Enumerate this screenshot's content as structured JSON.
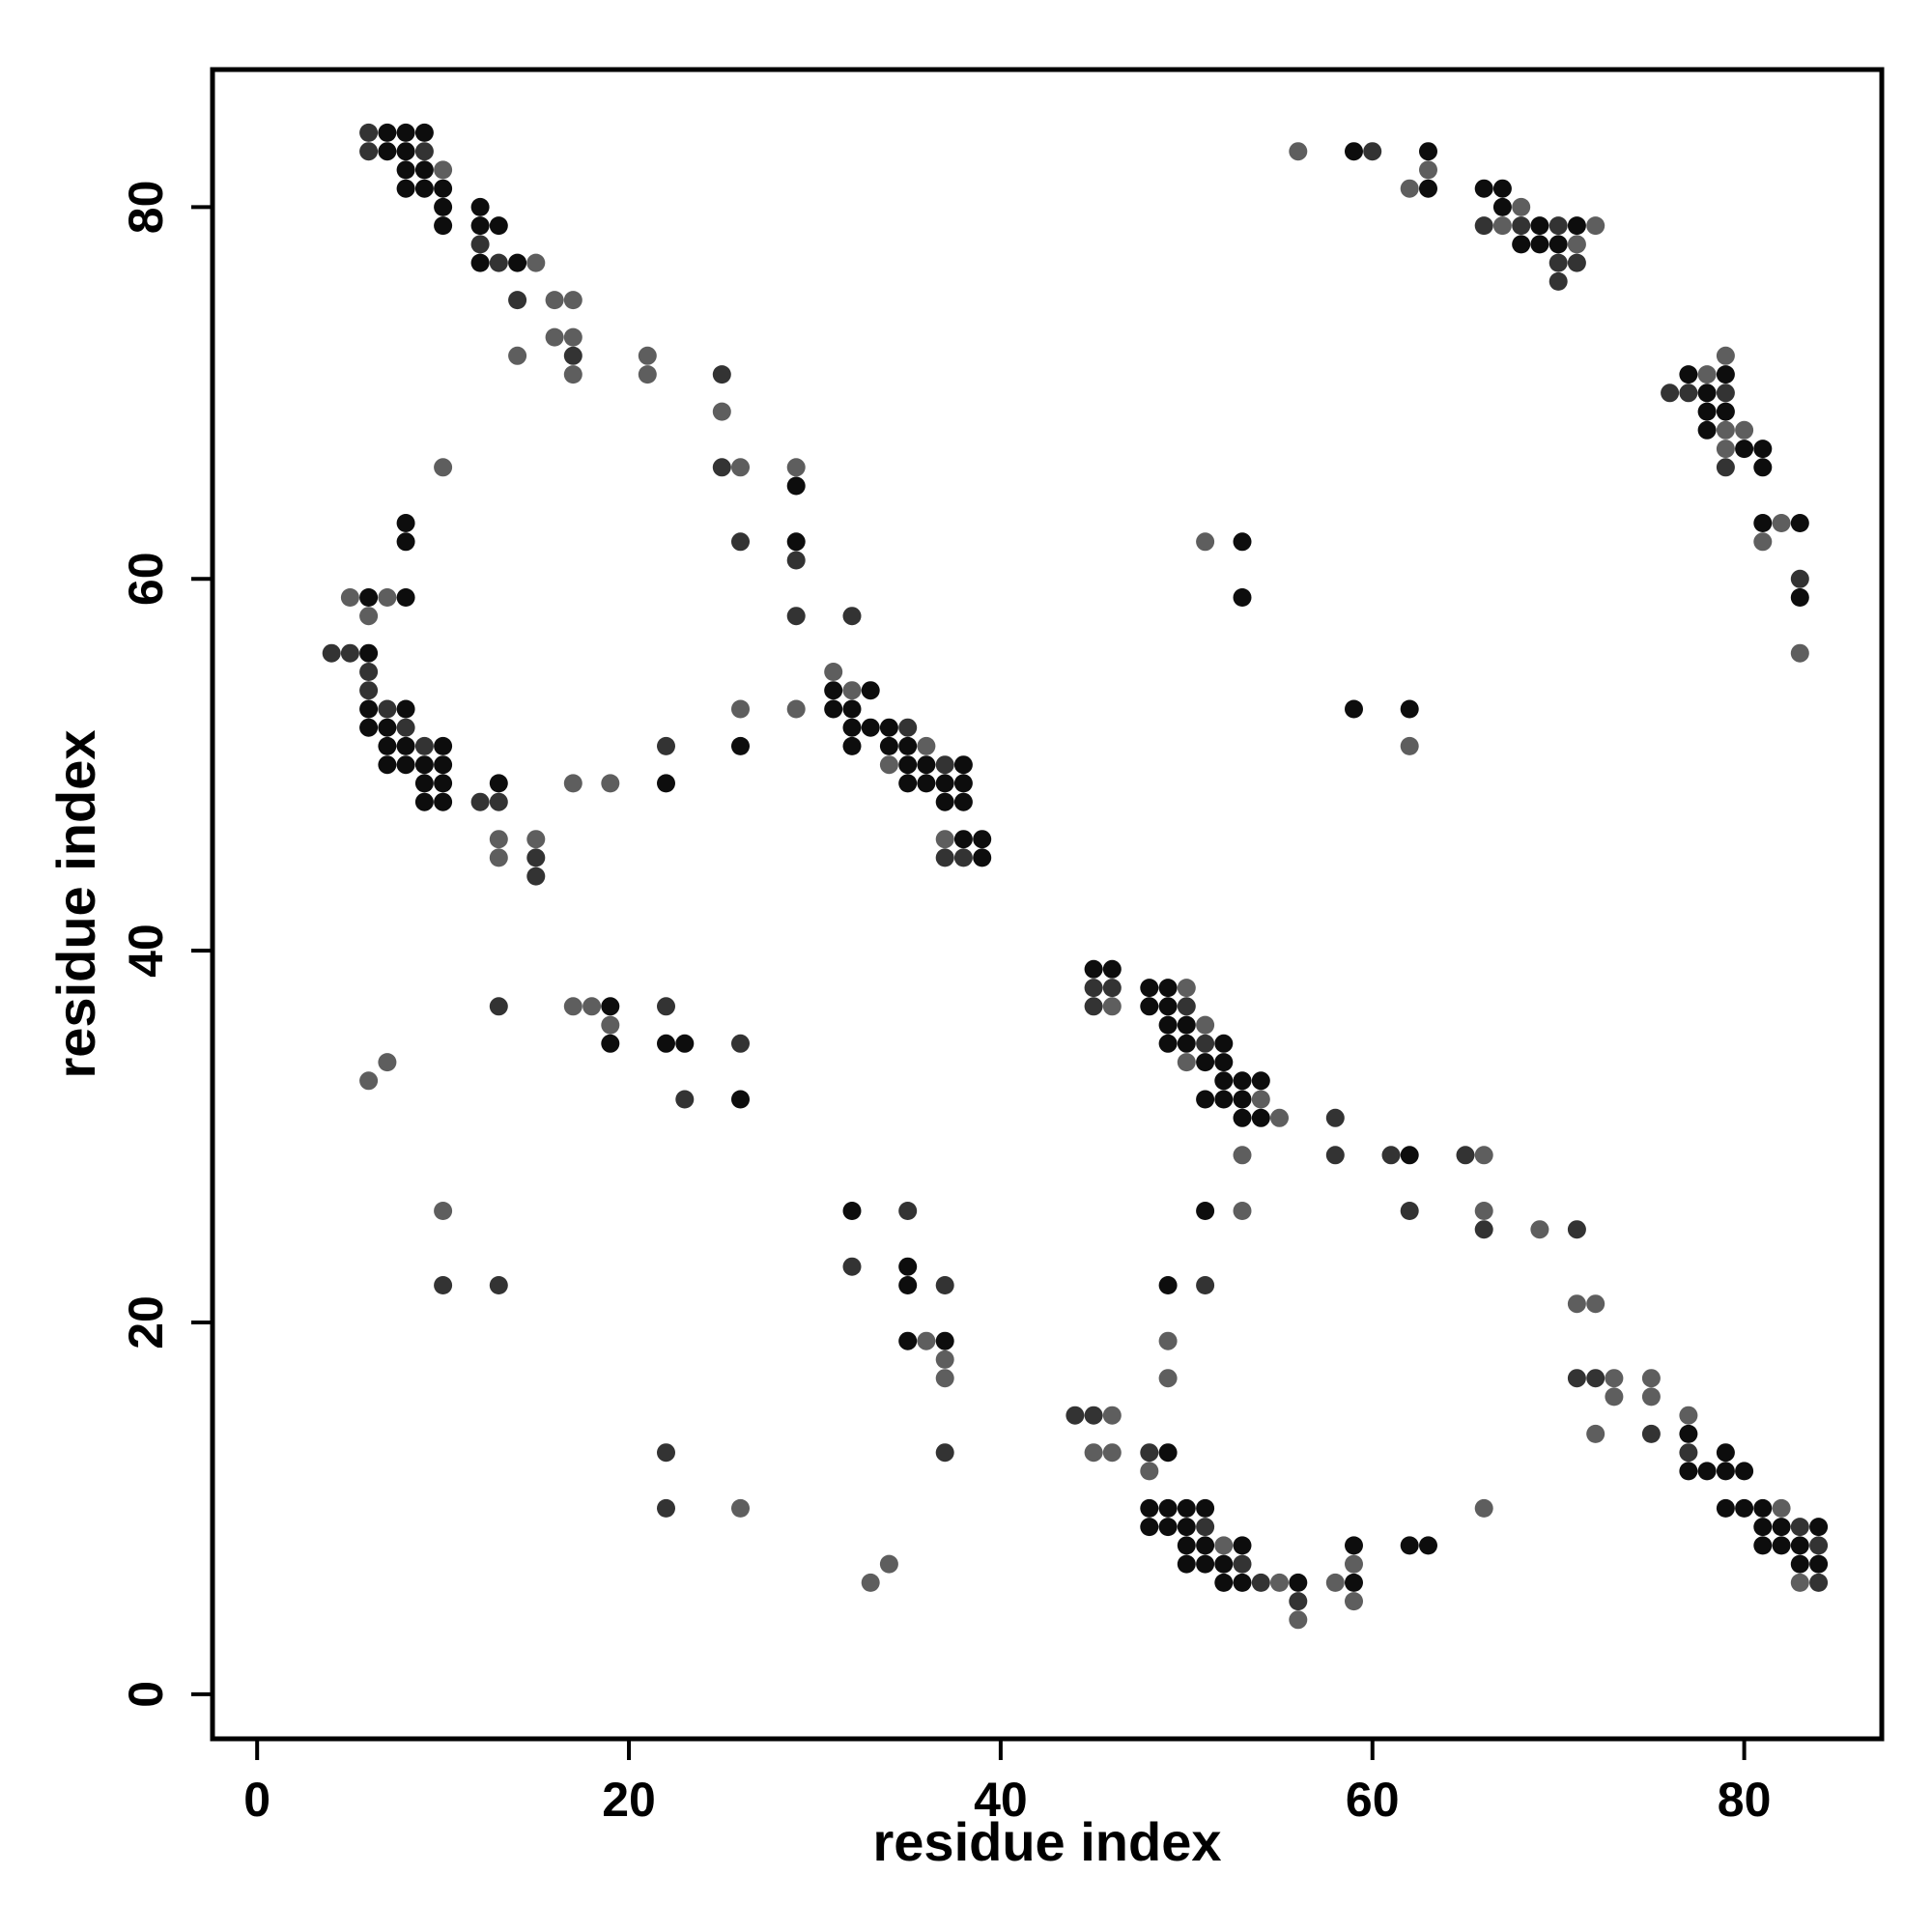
{
  "chart_data": {
    "type": "scatter",
    "title": "",
    "xlabel": "residue index",
    "ylabel": "residue index",
    "xlim": [
      -2.4,
      87.4
    ],
    "ylim": [
      -2.4,
      87.4
    ],
    "x_ticks": [
      0,
      20,
      40,
      60,
      80
    ],
    "y_ticks": [
      0,
      20,
      40,
      60,
      80
    ],
    "grid": false,
    "legend": "none",
    "colors": {
      "dark": "#0d0d0d",
      "mid": "#333333",
      "light": "#5e5e5e"
    },
    "points": [
      [
        6,
        84,
        "mid"
      ],
      [
        7,
        84,
        "dark"
      ],
      [
        8,
        84,
        "dark"
      ],
      [
        9,
        84,
        "dark"
      ],
      [
        6,
        83,
        "mid"
      ],
      [
        7,
        83,
        "dark"
      ],
      [
        8,
        83,
        "dark"
      ],
      [
        9,
        83,
        "mid"
      ],
      [
        8,
        82,
        "dark"
      ],
      [
        9,
        82,
        "dark"
      ],
      [
        10,
        82,
        "light"
      ],
      [
        8,
        81,
        "dark"
      ],
      [
        9,
        81,
        "dark"
      ],
      [
        10,
        81,
        "dark"
      ],
      [
        10,
        80,
        "dark"
      ],
      [
        12,
        80,
        "dark"
      ],
      [
        10,
        79,
        "dark"
      ],
      [
        12,
        79,
        "dark"
      ],
      [
        13,
        79,
        "dark"
      ],
      [
        12,
        78,
        "mid"
      ],
      [
        12,
        77,
        "dark"
      ],
      [
        13,
        77,
        "mid"
      ],
      [
        14,
        77,
        "dark"
      ],
      [
        15,
        77,
        "light"
      ],
      [
        14,
        75,
        "mid"
      ],
      [
        16,
        75,
        "light"
      ],
      [
        17,
        75,
        "light"
      ],
      [
        16,
        73,
        "light"
      ],
      [
        17,
        73,
        "light"
      ],
      [
        14,
        72,
        "light"
      ],
      [
        17,
        72,
        "mid"
      ],
      [
        21,
        72,
        "light"
      ],
      [
        17,
        71,
        "light"
      ],
      [
        21,
        71,
        "light"
      ],
      [
        25,
        71,
        "mid"
      ],
      [
        25,
        69,
        "light"
      ],
      [
        10,
        66,
        "light"
      ],
      [
        25,
        66,
        "mid"
      ],
      [
        26,
        66,
        "light"
      ],
      [
        29,
        66,
        "light"
      ],
      [
        29,
        65,
        "dark"
      ],
      [
        8,
        63,
        "dark"
      ],
      [
        8,
        62,
        "dark"
      ],
      [
        26,
        62,
        "mid"
      ],
      [
        29,
        62,
        "dark"
      ],
      [
        29,
        61,
        "mid"
      ],
      [
        5,
        59,
        "light"
      ],
      [
        6,
        59,
        "dark"
      ],
      [
        7,
        59,
        "light"
      ],
      [
        8,
        59,
        "dark"
      ],
      [
        6,
        58,
        "light"
      ],
      [
        29,
        58,
        "mid"
      ],
      [
        32,
        58,
        "mid"
      ],
      [
        4,
        56,
        "mid"
      ],
      [
        5,
        56,
        "mid"
      ],
      [
        6,
        56,
        "dark"
      ],
      [
        6,
        55,
        "mid"
      ],
      [
        31,
        55,
        "light"
      ],
      [
        6,
        54,
        "mid"
      ],
      [
        31,
        54,
        "dark"
      ],
      [
        32,
        54,
        "light"
      ],
      [
        33,
        54,
        "dark"
      ],
      [
        6,
        53,
        "dark"
      ],
      [
        7,
        53,
        "mid"
      ],
      [
        8,
        53,
        "dark"
      ],
      [
        26,
        53,
        "light"
      ],
      [
        29,
        53,
        "light"
      ],
      [
        31,
        53,
        "dark"
      ],
      [
        32,
        53,
        "dark"
      ],
      [
        6,
        52,
        "dark"
      ],
      [
        7,
        52,
        "dark"
      ],
      [
        8,
        52,
        "mid"
      ],
      [
        32,
        52,
        "dark"
      ],
      [
        33,
        52,
        "dark"
      ],
      [
        34,
        52,
        "dark"
      ],
      [
        35,
        52,
        "mid"
      ],
      [
        7,
        51,
        "dark"
      ],
      [
        8,
        51,
        "dark"
      ],
      [
        9,
        51,
        "mid"
      ],
      [
        10,
        51,
        "dark"
      ],
      [
        22,
        51,
        "mid"
      ],
      [
        26,
        51,
        "dark"
      ],
      [
        32,
        51,
        "dark"
      ],
      [
        34,
        51,
        "dark"
      ],
      [
        35,
        51,
        "dark"
      ],
      [
        36,
        51,
        "light"
      ],
      [
        7,
        50,
        "dark"
      ],
      [
        8,
        50,
        "dark"
      ],
      [
        9,
        50,
        "dark"
      ],
      [
        10,
        50,
        "dark"
      ],
      [
        34,
        50,
        "light"
      ],
      [
        35,
        50,
        "dark"
      ],
      [
        36,
        50,
        "dark"
      ],
      [
        37,
        50,
        "mid"
      ],
      [
        38,
        50,
        "dark"
      ],
      [
        9,
        49,
        "dark"
      ],
      [
        10,
        49,
        "dark"
      ],
      [
        13,
        49,
        "dark"
      ],
      [
        17,
        49,
        "light"
      ],
      [
        19,
        49,
        "light"
      ],
      [
        22,
        49,
        "dark"
      ],
      [
        35,
        49,
        "dark"
      ],
      [
        36,
        49,
        "dark"
      ],
      [
        37,
        49,
        "dark"
      ],
      [
        38,
        49,
        "dark"
      ],
      [
        9,
        48,
        "dark"
      ],
      [
        10,
        48,
        "dark"
      ],
      [
        12,
        48,
        "mid"
      ],
      [
        13,
        48,
        "mid"
      ],
      [
        37,
        48,
        "dark"
      ],
      [
        38,
        48,
        "dark"
      ],
      [
        13,
        46,
        "light"
      ],
      [
        15,
        46,
        "light"
      ],
      [
        37,
        46,
        "light"
      ],
      [
        38,
        46,
        "dark"
      ],
      [
        39,
        46,
        "dark"
      ],
      [
        13,
        45,
        "light"
      ],
      [
        15,
        45,
        "mid"
      ],
      [
        37,
        45,
        "mid"
      ],
      [
        38,
        45,
        "mid"
      ],
      [
        39,
        45,
        "dark"
      ],
      [
        15,
        44,
        "mid"
      ],
      [
        45,
        39,
        "dark"
      ],
      [
        46,
        39,
        "dark"
      ],
      [
        45,
        38,
        "mid"
      ],
      [
        46,
        38,
        "mid"
      ],
      [
        48,
        38,
        "dark"
      ],
      [
        49,
        38,
        "dark"
      ],
      [
        50,
        38,
        "light"
      ],
      [
        13,
        37,
        "mid"
      ],
      [
        17,
        37,
        "light"
      ],
      [
        18,
        37,
        "light"
      ],
      [
        19,
        37,
        "dark"
      ],
      [
        22,
        37,
        "mid"
      ],
      [
        45,
        37,
        "mid"
      ],
      [
        46,
        37,
        "light"
      ],
      [
        48,
        37,
        "dark"
      ],
      [
        49,
        37,
        "dark"
      ],
      [
        50,
        37,
        "mid"
      ],
      [
        19,
        36,
        "light"
      ],
      [
        49,
        36,
        "dark"
      ],
      [
        50,
        36,
        "dark"
      ],
      [
        51,
        36,
        "light"
      ],
      [
        19,
        35,
        "dark"
      ],
      [
        22,
        35,
        "dark"
      ],
      [
        23,
        35,
        "dark"
      ],
      [
        26,
        35,
        "mid"
      ],
      [
        49,
        35,
        "dark"
      ],
      [
        50,
        35,
        "dark"
      ],
      [
        51,
        35,
        "mid"
      ],
      [
        52,
        35,
        "dark"
      ],
      [
        6,
        33,
        "light"
      ],
      [
        7,
        34,
        "light"
      ],
      [
        50,
        34,
        "light"
      ],
      [
        51,
        34,
        "dark"
      ],
      [
        52,
        34,
        "dark"
      ],
      [
        52,
        33,
        "dark"
      ],
      [
        53,
        33,
        "dark"
      ],
      [
        54,
        33,
        "dark"
      ],
      [
        23,
        32,
        "mid"
      ],
      [
        26,
        32,
        "dark"
      ],
      [
        51,
        32,
        "dark"
      ],
      [
        52,
        32,
        "dark"
      ],
      [
        53,
        32,
        "dark"
      ],
      [
        54,
        32,
        "light"
      ],
      [
        53,
        31,
        "dark"
      ],
      [
        54,
        31,
        "dark"
      ],
      [
        55,
        31,
        "light"
      ],
      [
        58,
        31,
        "mid"
      ],
      [
        53,
        29,
        "light"
      ],
      [
        58,
        29,
        "mid"
      ],
      [
        61,
        29,
        "mid"
      ],
      [
        62,
        29,
        "dark"
      ],
      [
        65,
        29,
        "mid"
      ],
      [
        66,
        29,
        "light"
      ],
      [
        10,
        26,
        "light"
      ],
      [
        32,
        26,
        "dark"
      ],
      [
        35,
        26,
        "mid"
      ],
      [
        51,
        26,
        "dark"
      ],
      [
        53,
        26,
        "light"
      ],
      [
        62,
        26,
        "mid"
      ],
      [
        66,
        26,
        "light"
      ],
      [
        66,
        25,
        "mid"
      ],
      [
        69,
        25,
        "light"
      ],
      [
        71,
        25,
        "mid"
      ],
      [
        32,
        23,
        "mid"
      ],
      [
        35,
        23,
        "dark"
      ],
      [
        10,
        22,
        "mid"
      ],
      [
        13,
        22,
        "mid"
      ],
      [
        35,
        22,
        "dark"
      ],
      [
        37,
        22,
        "mid"
      ],
      [
        49,
        22,
        "dark"
      ],
      [
        51,
        22,
        "mid"
      ],
      [
        71,
        21,
        "light"
      ],
      [
        72,
        21,
        "light"
      ],
      [
        35,
        19,
        "dark"
      ],
      [
        36,
        19,
        "light"
      ],
      [
        37,
        19,
        "dark"
      ],
      [
        49,
        19,
        "light"
      ],
      [
        37,
        18,
        "light"
      ],
      [
        37,
        17,
        "light"
      ],
      [
        49,
        17,
        "light"
      ],
      [
        71,
        17,
        "mid"
      ],
      [
        72,
        17,
        "mid"
      ],
      [
        73,
        17,
        "light"
      ],
      [
        75,
        17,
        "light"
      ],
      [
        73,
        16,
        "light"
      ],
      [
        75,
        16,
        "light"
      ],
      [
        44,
        15,
        "mid"
      ],
      [
        45,
        15,
        "mid"
      ],
      [
        46,
        15,
        "light"
      ],
      [
        77,
        15,
        "light"
      ],
      [
        72,
        14,
        "light"
      ],
      [
        75,
        14,
        "mid"
      ],
      [
        77,
        14,
        "dark"
      ],
      [
        22,
        13,
        "mid"
      ],
      [
        37,
        13,
        "mid"
      ],
      [
        45,
        13,
        "light"
      ],
      [
        46,
        13,
        "light"
      ],
      [
        48,
        13,
        "mid"
      ],
      [
        49,
        13,
        "dark"
      ],
      [
        77,
        13,
        "mid"
      ],
      [
        79,
        13,
        "dark"
      ],
      [
        48,
        12,
        "light"
      ],
      [
        77,
        12,
        "dark"
      ],
      [
        78,
        12,
        "dark"
      ],
      [
        79,
        12,
        "dark"
      ],
      [
        80,
        12,
        "dark"
      ],
      [
        22,
        10,
        "mid"
      ],
      [
        26,
        10,
        "light"
      ],
      [
        48,
        10,
        "dark"
      ],
      [
        49,
        10,
        "dark"
      ],
      [
        50,
        10,
        "dark"
      ],
      [
        51,
        10,
        "dark"
      ],
      [
        66,
        10,
        "light"
      ],
      [
        79,
        10,
        "dark"
      ],
      [
        80,
        10,
        "dark"
      ],
      [
        81,
        10,
        "dark"
      ],
      [
        82,
        10,
        "light"
      ],
      [
        48,
        9,
        "dark"
      ],
      [
        49,
        9,
        "dark"
      ],
      [
        50,
        9,
        "dark"
      ],
      [
        51,
        9,
        "mid"
      ],
      [
        81,
        9,
        "dark"
      ],
      [
        82,
        9,
        "dark"
      ],
      [
        83,
        9,
        "mid"
      ],
      [
        84,
        9,
        "dark"
      ],
      [
        50,
        8,
        "dark"
      ],
      [
        51,
        8,
        "dark"
      ],
      [
        52,
        8,
        "light"
      ],
      [
        53,
        8,
        "dark"
      ],
      [
        59,
        8,
        "dark"
      ],
      [
        62,
        8,
        "dark"
      ],
      [
        63,
        8,
        "dark"
      ],
      [
        81,
        8,
        "dark"
      ],
      [
        82,
        8,
        "dark"
      ],
      [
        83,
        8,
        "dark"
      ],
      [
        84,
        8,
        "mid"
      ],
      [
        34,
        7,
        "light"
      ],
      [
        50,
        7,
        "dark"
      ],
      [
        51,
        7,
        "dark"
      ],
      [
        52,
        7,
        "dark"
      ],
      [
        53,
        7,
        "mid"
      ],
      [
        59,
        7,
        "light"
      ],
      [
        83,
        7,
        "dark"
      ],
      [
        84,
        7,
        "dark"
      ],
      [
        33,
        6,
        "light"
      ],
      [
        52,
        6,
        "dark"
      ],
      [
        53,
        6,
        "dark"
      ],
      [
        54,
        6,
        "mid"
      ],
      [
        55,
        6,
        "light"
      ],
      [
        56,
        6,
        "dark"
      ],
      [
        58,
        6,
        "light"
      ],
      [
        59,
        6,
        "dark"
      ],
      [
        83,
        6,
        "light"
      ],
      [
        84,
        6,
        "mid"
      ],
      [
        56,
        5,
        "mid"
      ],
      [
        59,
        5,
        "light"
      ],
      [
        56,
        4,
        "light"
      ],
      [
        56,
        83,
        "light"
      ],
      [
        59,
        83,
        "dark"
      ],
      [
        60,
        83,
        "mid"
      ],
      [
        63,
        83,
        "dark"
      ],
      [
        63,
        82,
        "light"
      ],
      [
        62,
        81,
        "light"
      ],
      [
        63,
        81,
        "dark"
      ],
      [
        66,
        81,
        "dark"
      ],
      [
        67,
        81,
        "dark"
      ],
      [
        67,
        80,
        "dark"
      ],
      [
        68,
        80,
        "light"
      ],
      [
        66,
        79,
        "mid"
      ],
      [
        67,
        79,
        "light"
      ],
      [
        68,
        79,
        "mid"
      ],
      [
        69,
        79,
        "dark"
      ],
      [
        70,
        79,
        "mid"
      ],
      [
        71,
        79,
        "dark"
      ],
      [
        72,
        79,
        "light"
      ],
      [
        68,
        78,
        "dark"
      ],
      [
        69,
        78,
        "dark"
      ],
      [
        70,
        78,
        "dark"
      ],
      [
        71,
        78,
        "light"
      ],
      [
        70,
        77,
        "mid"
      ],
      [
        71,
        77,
        "mid"
      ],
      [
        70,
        76,
        "mid"
      ],
      [
        79,
        72,
        "light"
      ],
      [
        77,
        71,
        "dark"
      ],
      [
        78,
        71,
        "light"
      ],
      [
        79,
        71,
        "dark"
      ],
      [
        76,
        70,
        "mid"
      ],
      [
        77,
        70,
        "mid"
      ],
      [
        78,
        70,
        "dark"
      ],
      [
        79,
        70,
        "mid"
      ],
      [
        78,
        69,
        "dark"
      ],
      [
        79,
        69,
        "dark"
      ],
      [
        78,
        68,
        "dark"
      ],
      [
        79,
        68,
        "light"
      ],
      [
        80,
        68,
        "light"
      ],
      [
        79,
        67,
        "light"
      ],
      [
        80,
        67,
        "dark"
      ],
      [
        81,
        67,
        "dark"
      ],
      [
        79,
        66,
        "mid"
      ],
      [
        81,
        66,
        "dark"
      ],
      [
        81,
        63,
        "dark"
      ],
      [
        82,
        63,
        "light"
      ],
      [
        83,
        63,
        "dark"
      ],
      [
        81,
        62,
        "light"
      ],
      [
        83,
        60,
        "mid"
      ],
      [
        83,
        59,
        "dark"
      ],
      [
        83,
        56,
        "light"
      ],
      [
        51,
        62,
        "light"
      ],
      [
        53,
        62,
        "dark"
      ],
      [
        53,
        59,
        "dark"
      ],
      [
        59,
        53,
        "dark"
      ],
      [
        62,
        53,
        "dark"
      ],
      [
        62,
        51,
        "light"
      ]
    ]
  }
}
